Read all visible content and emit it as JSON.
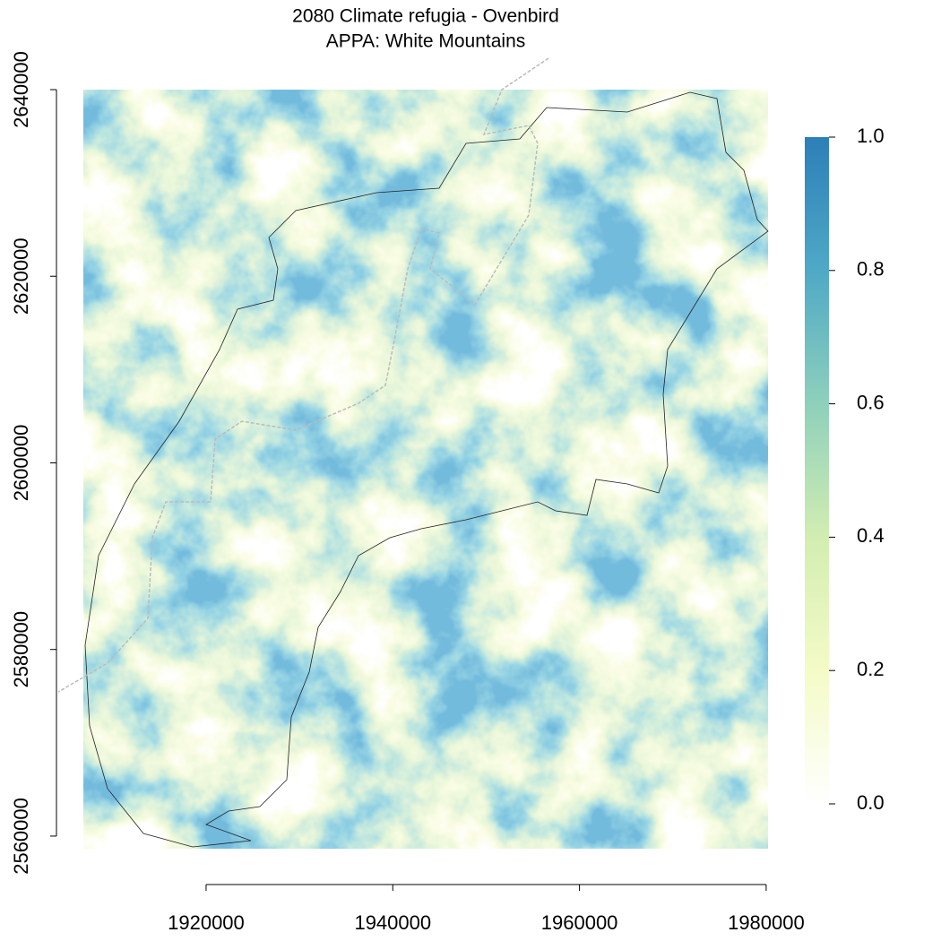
{
  "chart_data": {
    "type": "raster",
    "title": "2080 Climate refugia - Ovenbird",
    "subtitle": "APPA: White Mountains",
    "xlim": [
      1906850,
      1980200
    ],
    "ylim": [
      2558650,
      2640000
    ],
    "xticks": [
      1920000,
      1940000,
      1960000,
      1980000
    ],
    "yticks": [
      2560000,
      2580000,
      2600000,
      2620000,
      2640000
    ],
    "colorbar": {
      "zlim": [
        0,
        1
      ],
      "ticks": [
        {
          "value": 0,
          "label": "0.0"
        },
        {
          "value": 0.2,
          "label": "0.2"
        },
        {
          "value": 0.4,
          "label": "0.4"
        },
        {
          "value": 0.6,
          "label": "0.6"
        },
        {
          "value": 0.8,
          "label": "0.8"
        },
        {
          "value": 1,
          "label": "1.0"
        }
      ],
      "colors": [
        "#ffffff",
        "#f4fbc6",
        "#d2edb2",
        "#8ed0bb",
        "#4fa9c6",
        "#2c7fb8"
      ]
    }
  }
}
